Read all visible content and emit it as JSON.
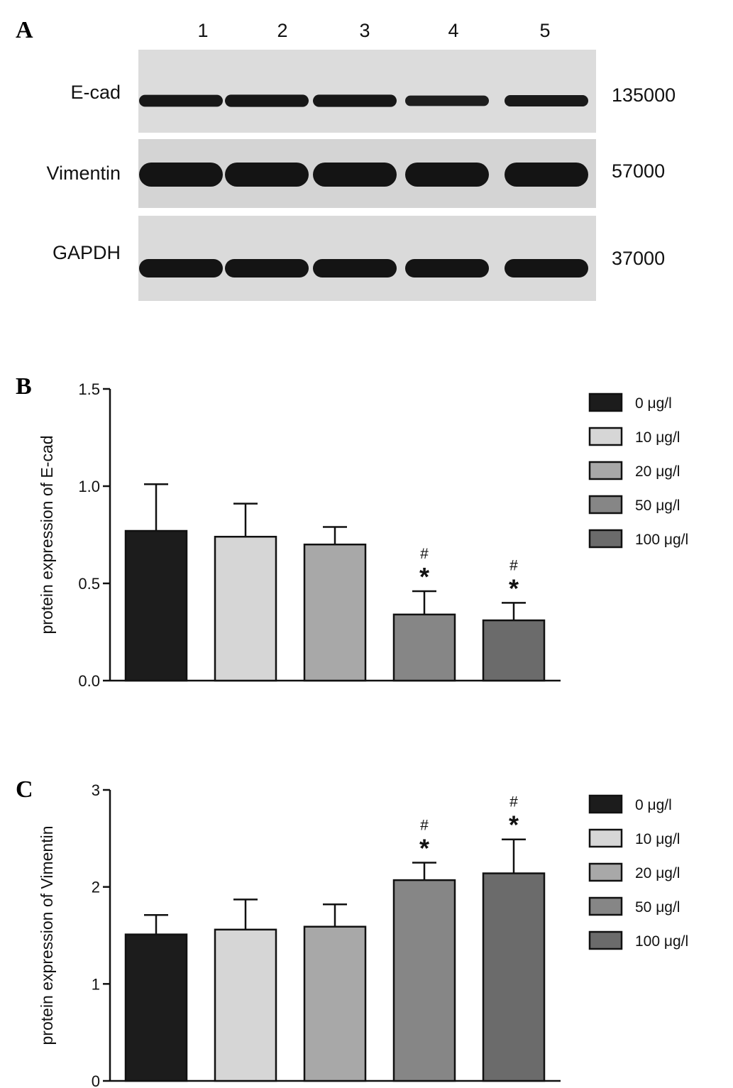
{
  "panels": {
    "a": "A",
    "b": "B",
    "c": "C"
  },
  "blot": {
    "lanes": [
      "1",
      "2",
      "3",
      "4",
      "5"
    ],
    "rows": [
      {
        "protein": "E-cad",
        "mw": "135000",
        "intensity": [
          0.85,
          0.9,
          0.9,
          0.6,
          0.75
        ]
      },
      {
        "protein": "Vimentin",
        "mw": "57000",
        "intensity": [
          1.0,
          1.0,
          1.0,
          1.0,
          1.0
        ]
      },
      {
        "protein": "GAPDH",
        "mw": "37000",
        "intensity": [
          1.0,
          1.0,
          1.0,
          1.0,
          1.0
        ]
      }
    ]
  },
  "chart_data": [
    {
      "type": "bar",
      "panel": "B",
      "ylabel": "protein expression of E-cad",
      "ylim": [
        0,
        1.5
      ],
      "yticks": [
        "0.0",
        "0.5",
        "1.0",
        "1.5"
      ],
      "categories": [
        "0 μg/l",
        "10 μg/l",
        "20 μg/l",
        "50 μg/l",
        "100 μg/l"
      ],
      "values": [
        0.77,
        0.74,
        0.7,
        0.34,
        0.31
      ],
      "errors": [
        0.24,
        0.17,
        0.09,
        0.12,
        0.09
      ],
      "significance": [
        [],
        [],
        [],
        [
          "#",
          "*"
        ],
        [
          "#",
          "*"
        ]
      ],
      "colors": [
        "#1c1c1c",
        "#d6d6d6",
        "#a8a8a8",
        "#868686",
        "#6b6b6b"
      ],
      "legend_position": "top-right"
    },
    {
      "type": "bar",
      "panel": "C",
      "ylabel": "protein expression of Vimentin",
      "ylim": [
        0,
        3
      ],
      "yticks": [
        "0",
        "1",
        "2",
        "3"
      ],
      "categories": [
        "0 μg/l",
        "10 μg/l",
        "20 μg/l",
        "50 μg/l",
        "100 μg/l"
      ],
      "values": [
        1.51,
        1.56,
        1.59,
        2.07,
        2.14
      ],
      "errors": [
        0.2,
        0.31,
        0.23,
        0.18,
        0.35
      ],
      "significance": [
        [],
        [],
        [],
        [
          "#",
          "*"
        ],
        [
          "#",
          "*"
        ]
      ],
      "colors": [
        "#1c1c1c",
        "#d6d6d6",
        "#a8a8a8",
        "#868686",
        "#6b6b6b"
      ],
      "legend_position": "top-right"
    }
  ]
}
